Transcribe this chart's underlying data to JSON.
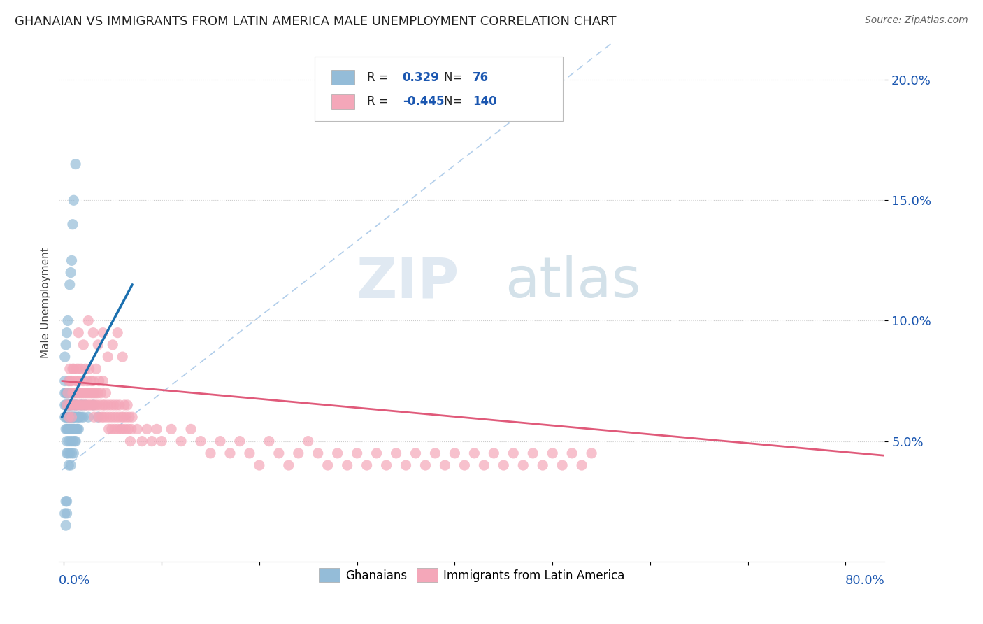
{
  "title": "GHANAIAN VS IMMIGRANTS FROM LATIN AMERICA MALE UNEMPLOYMENT CORRELATION CHART",
  "source": "Source: ZipAtlas.com",
  "ylabel": "Male Unemployment",
  "y_ticks": [
    0.05,
    0.1,
    0.15,
    0.2
  ],
  "y_tick_labels": [
    "5.0%",
    "10.0%",
    "15.0%",
    "20.0%"
  ],
  "xlim": [
    -0.005,
    0.84
  ],
  "ylim": [
    0.0,
    0.215
  ],
  "blue_color": "#94bcd8",
  "pink_color": "#f4a7b9",
  "blue_line_color": "#1a6faf",
  "pink_line_color": "#e05a7a",
  "dash_line_color": "#a8c8e8",
  "watermark_zip": "ZIP",
  "watermark_atlas": "atlas",
  "ghanaian_points": [
    [
      0.001,
      0.06
    ],
    [
      0.001,
      0.065
    ],
    [
      0.001,
      0.07
    ],
    [
      0.001,
      0.075
    ],
    [
      0.002,
      0.055
    ],
    [
      0.002,
      0.06
    ],
    [
      0.002,
      0.065
    ],
    [
      0.002,
      0.07
    ],
    [
      0.003,
      0.045
    ],
    [
      0.003,
      0.05
    ],
    [
      0.003,
      0.055
    ],
    [
      0.003,
      0.06
    ],
    [
      0.003,
      0.065
    ],
    [
      0.003,
      0.07
    ],
    [
      0.004,
      0.045
    ],
    [
      0.004,
      0.055
    ],
    [
      0.004,
      0.06
    ],
    [
      0.004,
      0.065
    ],
    [
      0.004,
      0.07
    ],
    [
      0.005,
      0.04
    ],
    [
      0.005,
      0.05
    ],
    [
      0.005,
      0.055
    ],
    [
      0.005,
      0.06
    ],
    [
      0.005,
      0.065
    ],
    [
      0.005,
      0.07
    ],
    [
      0.005,
      0.075
    ],
    [
      0.006,
      0.045
    ],
    [
      0.006,
      0.055
    ],
    [
      0.006,
      0.06
    ],
    [
      0.006,
      0.065
    ],
    [
      0.007,
      0.04
    ],
    [
      0.007,
      0.05
    ],
    [
      0.007,
      0.055
    ],
    [
      0.007,
      0.06
    ],
    [
      0.007,
      0.065
    ],
    [
      0.008,
      0.045
    ],
    [
      0.008,
      0.055
    ],
    [
      0.008,
      0.06
    ],
    [
      0.008,
      0.065
    ],
    [
      0.009,
      0.05
    ],
    [
      0.009,
      0.055
    ],
    [
      0.009,
      0.06
    ],
    [
      0.01,
      0.045
    ],
    [
      0.01,
      0.055
    ],
    [
      0.01,
      0.06
    ],
    [
      0.01,
      0.065
    ],
    [
      0.01,
      0.07
    ],
    [
      0.011,
      0.05
    ],
    [
      0.011,
      0.055
    ],
    [
      0.011,
      0.06
    ],
    [
      0.012,
      0.05
    ],
    [
      0.012,
      0.06
    ],
    [
      0.012,
      0.065
    ],
    [
      0.013,
      0.055
    ],
    [
      0.013,
      0.065
    ],
    [
      0.014,
      0.055
    ],
    [
      0.014,
      0.06
    ],
    [
      0.015,
      0.055
    ],
    [
      0.015,
      0.06
    ],
    [
      0.016,
      0.06
    ],
    [
      0.017,
      0.065
    ],
    [
      0.018,
      0.06
    ],
    [
      0.019,
      0.065
    ],
    [
      0.02,
      0.06
    ],
    [
      0.022,
      0.065
    ],
    [
      0.025,
      0.06
    ],
    [
      0.03,
      0.065
    ],
    [
      0.035,
      0.06
    ],
    [
      0.001,
      0.085
    ],
    [
      0.002,
      0.09
    ],
    [
      0.003,
      0.095
    ],
    [
      0.004,
      0.1
    ],
    [
      0.006,
      0.115
    ],
    [
      0.007,
      0.12
    ],
    [
      0.008,
      0.125
    ],
    [
      0.009,
      0.14
    ],
    [
      0.01,
      0.15
    ],
    [
      0.012,
      0.165
    ],
    [
      0.001,
      0.02
    ],
    [
      0.002,
      0.015
    ],
    [
      0.002,
      0.025
    ],
    [
      0.003,
      0.02
    ],
    [
      0.003,
      0.025
    ]
  ],
  "latin_points": [
    [
      0.003,
      0.065
    ],
    [
      0.004,
      0.07
    ],
    [
      0.005,
      0.06
    ],
    [
      0.005,
      0.075
    ],
    [
      0.006,
      0.065
    ],
    [
      0.006,
      0.08
    ],
    [
      0.007,
      0.065
    ],
    [
      0.007,
      0.075
    ],
    [
      0.008,
      0.06
    ],
    [
      0.008,
      0.075
    ],
    [
      0.009,
      0.07
    ],
    [
      0.009,
      0.08
    ],
    [
      0.01,
      0.065
    ],
    [
      0.01,
      0.08
    ],
    [
      0.011,
      0.07
    ],
    [
      0.012,
      0.065
    ],
    [
      0.012,
      0.075
    ],
    [
      0.013,
      0.07
    ],
    [
      0.013,
      0.08
    ],
    [
      0.014,
      0.065
    ],
    [
      0.014,
      0.075
    ],
    [
      0.015,
      0.07
    ],
    [
      0.015,
      0.08
    ],
    [
      0.016,
      0.065
    ],
    [
      0.016,
      0.075
    ],
    [
      0.017,
      0.07
    ],
    [
      0.018,
      0.065
    ],
    [
      0.018,
      0.08
    ],
    [
      0.019,
      0.07
    ],
    [
      0.02,
      0.065
    ],
    [
      0.02,
      0.075
    ],
    [
      0.021,
      0.07
    ],
    [
      0.022,
      0.065
    ],
    [
      0.022,
      0.08
    ],
    [
      0.023,
      0.07
    ],
    [
      0.024,
      0.065
    ],
    [
      0.024,
      0.075
    ],
    [
      0.025,
      0.07
    ],
    [
      0.026,
      0.065
    ],
    [
      0.026,
      0.08
    ],
    [
      0.027,
      0.07
    ],
    [
      0.028,
      0.065
    ],
    [
      0.028,
      0.075
    ],
    [
      0.029,
      0.07
    ],
    [
      0.03,
      0.065
    ],
    [
      0.03,
      0.075
    ],
    [
      0.031,
      0.06
    ],
    [
      0.031,
      0.07
    ],
    [
      0.032,
      0.065
    ],
    [
      0.033,
      0.07
    ],
    [
      0.033,
      0.08
    ],
    [
      0.034,
      0.065
    ],
    [
      0.035,
      0.07
    ],
    [
      0.036,
      0.06
    ],
    [
      0.036,
      0.075
    ],
    [
      0.037,
      0.065
    ],
    [
      0.038,
      0.07
    ],
    [
      0.039,
      0.06
    ],
    [
      0.04,
      0.065
    ],
    [
      0.04,
      0.075
    ],
    [
      0.041,
      0.06
    ],
    [
      0.042,
      0.065
    ],
    [
      0.043,
      0.07
    ],
    [
      0.044,
      0.06
    ],
    [
      0.045,
      0.065
    ],
    [
      0.046,
      0.055
    ],
    [
      0.047,
      0.06
    ],
    [
      0.048,
      0.065
    ],
    [
      0.049,
      0.055
    ],
    [
      0.05,
      0.06
    ],
    [
      0.051,
      0.065
    ],
    [
      0.052,
      0.055
    ],
    [
      0.053,
      0.06
    ],
    [
      0.054,
      0.065
    ],
    [
      0.055,
      0.055
    ],
    [
      0.056,
      0.06
    ],
    [
      0.057,
      0.065
    ],
    [
      0.058,
      0.055
    ],
    [
      0.059,
      0.06
    ],
    [
      0.06,
      0.055
    ],
    [
      0.061,
      0.06
    ],
    [
      0.062,
      0.065
    ],
    [
      0.063,
      0.055
    ],
    [
      0.064,
      0.06
    ],
    [
      0.065,
      0.065
    ],
    [
      0.066,
      0.055
    ],
    [
      0.067,
      0.06
    ],
    [
      0.068,
      0.05
    ],
    [
      0.069,
      0.055
    ],
    [
      0.07,
      0.06
    ],
    [
      0.075,
      0.055
    ],
    [
      0.08,
      0.05
    ],
    [
      0.085,
      0.055
    ],
    [
      0.09,
      0.05
    ],
    [
      0.095,
      0.055
    ],
    [
      0.1,
      0.05
    ],
    [
      0.11,
      0.055
    ],
    [
      0.12,
      0.05
    ],
    [
      0.13,
      0.055
    ],
    [
      0.14,
      0.05
    ],
    [
      0.015,
      0.095
    ],
    [
      0.02,
      0.09
    ],
    [
      0.025,
      0.1
    ],
    [
      0.03,
      0.095
    ],
    [
      0.035,
      0.09
    ],
    [
      0.04,
      0.095
    ],
    [
      0.045,
      0.085
    ],
    [
      0.05,
      0.09
    ],
    [
      0.055,
      0.095
    ],
    [
      0.06,
      0.085
    ],
    [
      0.15,
      0.045
    ],
    [
      0.16,
      0.05
    ],
    [
      0.17,
      0.045
    ],
    [
      0.18,
      0.05
    ],
    [
      0.19,
      0.045
    ],
    [
      0.2,
      0.04
    ],
    [
      0.21,
      0.05
    ],
    [
      0.22,
      0.045
    ],
    [
      0.23,
      0.04
    ],
    [
      0.24,
      0.045
    ],
    [
      0.25,
      0.05
    ],
    [
      0.26,
      0.045
    ],
    [
      0.27,
      0.04
    ],
    [
      0.28,
      0.045
    ],
    [
      0.29,
      0.04
    ],
    [
      0.3,
      0.045
    ],
    [
      0.31,
      0.04
    ],
    [
      0.32,
      0.045
    ],
    [
      0.33,
      0.04
    ],
    [
      0.34,
      0.045
    ],
    [
      0.35,
      0.04
    ],
    [
      0.36,
      0.045
    ],
    [
      0.37,
      0.04
    ],
    [
      0.38,
      0.045
    ],
    [
      0.39,
      0.04
    ],
    [
      0.4,
      0.045
    ],
    [
      0.41,
      0.04
    ],
    [
      0.42,
      0.045
    ],
    [
      0.43,
      0.04
    ],
    [
      0.44,
      0.045
    ],
    [
      0.45,
      0.04
    ],
    [
      0.46,
      0.045
    ],
    [
      0.47,
      0.04
    ],
    [
      0.48,
      0.045
    ],
    [
      0.49,
      0.04
    ],
    [
      0.5,
      0.045
    ],
    [
      0.51,
      0.04
    ],
    [
      0.52,
      0.045
    ],
    [
      0.53,
      0.04
    ],
    [
      0.54,
      0.045
    ]
  ]
}
